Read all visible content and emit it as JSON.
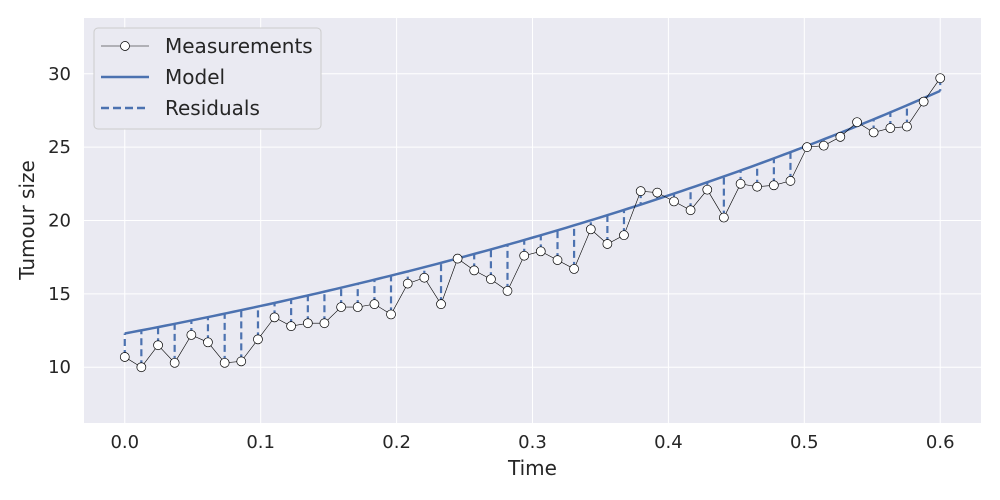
{
  "chart_data": {
    "type": "line",
    "title": "",
    "xlabel": "Time",
    "ylabel": "Tumour size",
    "xlim": [
      -0.03,
      0.63
    ],
    "ylim": [
      6.2,
      33.8
    ],
    "xticks": [
      "0.0",
      "0.1",
      "0.2",
      "0.3",
      "0.4",
      "0.5",
      "0.6"
    ],
    "yticks": [
      "10",
      "15",
      "20",
      "25",
      "30"
    ],
    "grid": true,
    "legend_position": "top-left",
    "series": [
      {
        "name": "Measurements",
        "style": "line-with-open-circle-markers",
        "color": "#000000",
        "x": [
          0.0,
          0.0122,
          0.0245,
          0.0367,
          0.049,
          0.0612,
          0.0735,
          0.0857,
          0.098,
          0.1102,
          0.1224,
          0.1347,
          0.1469,
          0.1592,
          0.1714,
          0.1837,
          0.1959,
          0.2082,
          0.2204,
          0.2327,
          0.2449,
          0.2571,
          0.2694,
          0.2816,
          0.2939,
          0.3061,
          0.3184,
          0.3306,
          0.3429,
          0.3551,
          0.3673,
          0.3796,
          0.3918,
          0.4041,
          0.4163,
          0.4286,
          0.4408,
          0.4531,
          0.4653,
          0.4776,
          0.4898,
          0.502,
          0.5143,
          0.5265,
          0.5388,
          0.551,
          0.5633,
          0.5755,
          0.5878,
          0.6
        ],
        "y": [
          10.7,
          10.0,
          11.5,
          10.3,
          12.2,
          11.7,
          10.3,
          10.4,
          11.9,
          13.4,
          12.8,
          13.0,
          13.0,
          14.1,
          14.1,
          14.3,
          13.6,
          15.7,
          16.1,
          14.3,
          17.4,
          16.6,
          16.0,
          15.2,
          17.6,
          17.9,
          17.3,
          16.7,
          19.4,
          18.4,
          19.0,
          22.0,
          21.9,
          21.3,
          20.7,
          22.1,
          20.2,
          22.5,
          22.3,
          22.4,
          22.7,
          25.0,
          25.1,
          25.7,
          26.7,
          26.0,
          26.3,
          26.4,
          28.1,
          29.7
        ]
      },
      {
        "name": "Model",
        "style": "solid-line",
        "color": "#4c72b0",
        "x_start": 0.0,
        "x_end": 0.6,
        "model_form": "y = 12.3 * exp(1.42 * x)"
      },
      {
        "name": "Residuals",
        "style": "dashed-vertical-segments",
        "color": "#4c72b0"
      }
    ]
  }
}
